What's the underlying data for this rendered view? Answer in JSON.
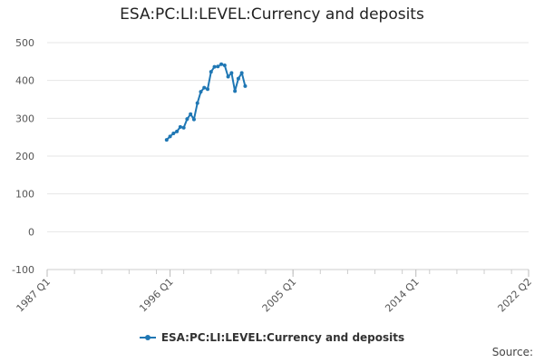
{
  "chart_data": {
    "type": "line",
    "title": "ESA:PC:LI:LEVEL:Currency and deposits",
    "xlabel": "",
    "ylabel": "",
    "ylim": [
      -100,
      500
    ],
    "yticks": [
      500,
      400,
      300,
      200,
      100,
      0,
      -100
    ],
    "xlim": [
      "1987 Q1",
      "2022 Q2"
    ],
    "xticks": [
      "1987 Q1",
      "1996 Q1",
      "2005 Q1",
      "2014 Q1",
      "2022 Q2"
    ],
    "grid": true,
    "legend_position": "bottom",
    "series": [
      {
        "name": "ESA:PC:LI:LEVEL:Currency and deposits",
        "color": "#1f77b4",
        "points": [
          [
            "1995 Q4",
            243
          ],
          [
            "1996 Q1",
            252
          ],
          [
            "1996 Q2",
            260
          ],
          [
            "1996 Q3",
            265
          ],
          [
            "1996 Q4",
            277
          ],
          [
            "1997 Q1",
            275
          ],
          [
            "1997 Q2",
            298
          ],
          [
            "1997 Q3",
            311
          ],
          [
            "1997 Q4",
            297
          ],
          [
            "1998 Q1",
            340
          ],
          [
            "1998 Q2",
            370
          ],
          [
            "1998 Q3",
            381
          ],
          [
            "1998 Q4",
            377
          ],
          [
            "1999 Q1",
            423
          ],
          [
            "1999 Q2",
            436
          ],
          [
            "1999 Q3",
            437
          ],
          [
            "1999 Q4",
            443
          ],
          [
            "2000 Q1",
            440
          ],
          [
            "2000 Q2",
            410
          ],
          [
            "2000 Q3",
            420
          ],
          [
            "2000 Q4",
            372
          ],
          [
            "2001 Q1",
            405
          ],
          [
            "2001 Q2",
            420
          ],
          [
            "2001 Q3",
            385
          ]
        ]
      }
    ]
  },
  "credit": "Source:"
}
